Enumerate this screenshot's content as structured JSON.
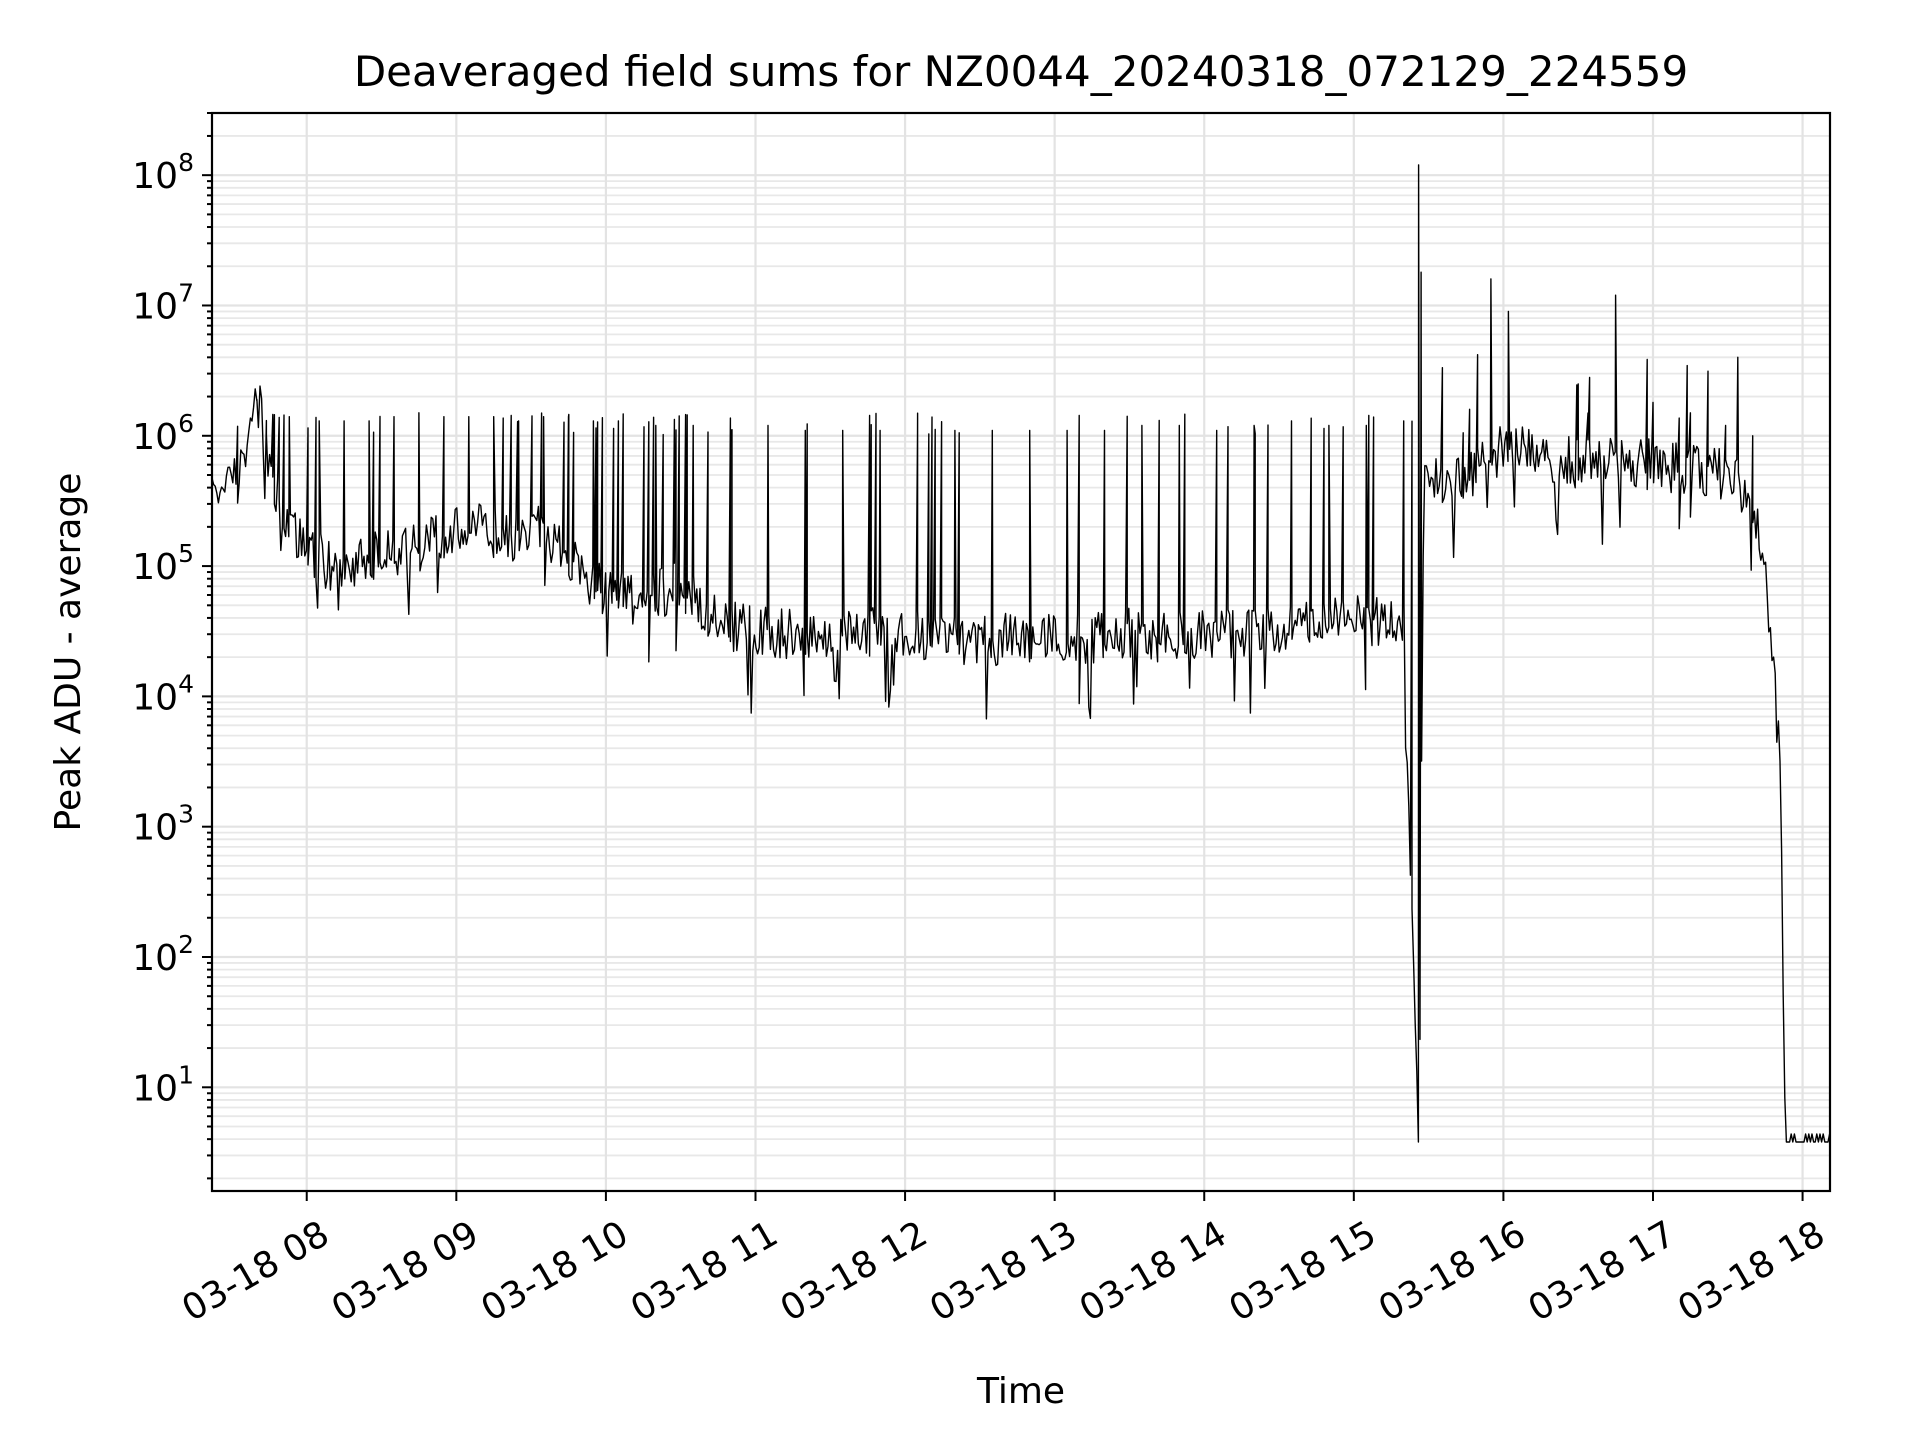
{
  "chart_data": {
    "type": "line",
    "title": "Deaveraged field sums for NZ0044_20240318_072129_224559",
    "xlabel": "Time",
    "ylabel": "Peak ADU - average",
    "yscale": "log",
    "xlim": [
      "2024-03-18 07:22",
      "2024-03-18 18:11"
    ],
    "ylim": [
      1.6,
      300000000
    ],
    "x_ticks": [
      {
        "time": "2024-03-18 08:00",
        "label": "03-18 08"
      },
      {
        "time": "2024-03-18 09:00",
        "label": "03-18 09"
      },
      {
        "time": "2024-03-18 10:00",
        "label": "03-18 10"
      },
      {
        "time": "2024-03-18 11:00",
        "label": "03-18 11"
      },
      {
        "time": "2024-03-18 12:00",
        "label": "03-18 12"
      },
      {
        "time": "2024-03-18 13:00",
        "label": "03-18 13"
      },
      {
        "time": "2024-03-18 14:00",
        "label": "03-18 14"
      },
      {
        "time": "2024-03-18 15:00",
        "label": "03-18 15"
      },
      {
        "time": "2024-03-18 16:00",
        "label": "03-18 16"
      },
      {
        "time": "2024-03-18 17:00",
        "label": "03-18 17"
      },
      {
        "time": "2024-03-18 18:00",
        "label": "03-18 18"
      }
    ],
    "y_ticks": [
      {
        "value": 10,
        "base": "10",
        "exp": "1"
      },
      {
        "value": 100,
        "base": "10",
        "exp": "2"
      },
      {
        "value": 1000,
        "base": "10",
        "exp": "3"
      },
      {
        "value": 10000,
        "base": "10",
        "exp": "4"
      },
      {
        "value": 100000,
        "base": "10",
        "exp": "5"
      },
      {
        "value": 1000000,
        "base": "10",
        "exp": "6"
      },
      {
        "value": 10000000,
        "base": "10",
        "exp": "7"
      },
      {
        "value": 100000000,
        "base": "10",
        "exp": "8"
      }
    ],
    "grid": true,
    "line_color": "#000000",
    "series": [
      {
        "name": "",
        "points": [
          [
            "2024-03-18 07:22",
            300000
          ],
          [
            "2024-03-18 07:27",
            550000
          ],
          [
            "2024-03-18 07:32",
            420000
          ],
          [
            "2024-03-18 07:38",
            1400000
          ],
          [
            "2024-03-18 07:41",
            1900000
          ],
          [
            "2024-03-18 07:44",
            650000
          ],
          [
            "2024-03-18 07:50",
            300000
          ],
          [
            "2024-03-18 07:55",
            200000
          ],
          [
            "2024-03-18 08:00",
            130000
          ],
          [
            "2024-03-18 08:10",
            100000
          ],
          [
            "2024-03-18 08:20",
            110000
          ],
          [
            "2024-03-18 08:30",
            120000
          ],
          [
            "2024-03-18 08:40",
            130000
          ],
          [
            "2024-03-18 08:50",
            150000
          ],
          [
            "2024-03-18 09:00",
            180000
          ],
          [
            "2024-03-18 09:10",
            200000
          ],
          [
            "2024-03-18 09:20",
            160000
          ],
          [
            "2024-03-18 09:30",
            200000
          ],
          [
            "2024-03-18 09:40",
            150000
          ],
          [
            "2024-03-18 09:50",
            90000
          ],
          [
            "2024-03-18 10:00",
            60000
          ],
          [
            "2024-03-18 10:10",
            55000
          ],
          [
            "2024-03-18 10:20",
            60000
          ],
          [
            "2024-03-18 10:30",
            70000
          ],
          [
            "2024-03-18 10:40",
            45000
          ],
          [
            "2024-03-18 10:50",
            35000
          ],
          [
            "2024-03-18 11:00",
            32000
          ],
          [
            "2024-03-18 11:15",
            30000
          ],
          [
            "2024-03-18 11:30",
            32000
          ],
          [
            "2024-03-18 11:45",
            30000
          ],
          [
            "2024-03-18 12:00",
            32000
          ],
          [
            "2024-03-18 12:15",
            28000
          ],
          [
            "2024-03-18 12:30",
            26000
          ],
          [
            "2024-03-18 12:45",
            28000
          ],
          [
            "2024-03-18 13:00",
            30000
          ],
          [
            "2024-03-18 13:15",
            28000
          ],
          [
            "2024-03-18 13:30",
            30000
          ],
          [
            "2024-03-18 13:45",
            28000
          ],
          [
            "2024-03-18 14:00",
            30000
          ],
          [
            "2024-03-18 14:15",
            31000
          ],
          [
            "2024-03-18 14:30",
            33000
          ],
          [
            "2024-03-18 14:45",
            35000
          ],
          [
            "2024-03-18 15:00",
            38000
          ],
          [
            "2024-03-18 15:20",
            40000
          ],
          [
            "2024-03-18 15:26",
            3.8
          ],
          [
            "2024-03-18 15:28",
            500000
          ],
          [
            "2024-03-18 15:35",
            450000
          ],
          [
            "2024-03-18 15:45",
            500000
          ],
          [
            "2024-03-18 16:00",
            800000
          ],
          [
            "2024-03-18 16:15",
            700000
          ],
          [
            "2024-03-18 16:30",
            600000
          ],
          [
            "2024-03-18 16:45",
            650000
          ],
          [
            "2024-03-18 17:00",
            600000
          ],
          [
            "2024-03-18 17:15",
            550000
          ],
          [
            "2024-03-18 17:30",
            500000
          ],
          [
            "2024-03-18 17:40",
            300000
          ],
          [
            "2024-03-18 17:45",
            100000
          ],
          [
            "2024-03-18 17:48",
            20000
          ],
          [
            "2024-03-18 17:51",
            3000
          ],
          [
            "2024-03-18 17:53",
            3.8
          ],
          [
            "2024-03-18 18:11",
            3.8
          ]
        ],
        "spikes": [
          [
            "2024-03-18 07:40",
            1900000
          ],
          [
            "2024-03-18 07:53",
            1400000
          ],
          [
            "2024-03-18 08:05",
            1300000
          ],
          [
            "2024-03-18 08:15",
            1300000
          ],
          [
            "2024-03-18 08:25",
            1300000
          ],
          [
            "2024-03-18 08:35",
            1400000
          ],
          [
            "2024-03-18 08:45",
            1500000
          ],
          [
            "2024-03-18 08:55",
            1400000
          ],
          [
            "2024-03-18 09:05",
            1400000
          ],
          [
            "2024-03-18 09:15",
            1400000
          ],
          [
            "2024-03-18 09:25",
            1300000
          ],
          [
            "2024-03-18 09:35",
            1400000
          ],
          [
            "2024-03-18 09:45",
            1400000
          ],
          [
            "2024-03-18 09:55",
            1300000
          ],
          [
            "2024-03-18 10:05",
            1300000
          ],
          [
            "2024-03-18 10:20",
            1200000
          ],
          [
            "2024-03-18 10:35",
            1200000
          ],
          [
            "2024-03-18 10:50",
            1100000
          ],
          [
            "2024-03-18 11:05",
            1200000
          ],
          [
            "2024-03-18 11:20",
            1100000
          ],
          [
            "2024-03-18 11:35",
            1100000
          ],
          [
            "2024-03-18 11:50",
            1100000
          ],
          [
            "2024-03-18 12:05",
            1000000
          ],
          [
            "2024-03-18 12:20",
            1100000
          ],
          [
            "2024-03-18 12:35",
            1100000
          ],
          [
            "2024-03-18 12:50",
            1100000
          ],
          [
            "2024-03-18 13:05",
            1100000
          ],
          [
            "2024-03-18 13:20",
            1100000
          ],
          [
            "2024-03-18 13:35",
            1200000
          ],
          [
            "2024-03-18 13:50",
            1200000
          ],
          [
            "2024-03-18 14:05",
            1100000
          ],
          [
            "2024-03-18 14:20",
            1200000
          ],
          [
            "2024-03-18 14:35",
            1300000
          ],
          [
            "2024-03-18 14:50",
            1200000
          ],
          [
            "2024-03-18 15:05",
            1200000
          ],
          [
            "2024-03-18 15:20",
            1300000
          ],
          [
            "2024-03-18 15:26",
            120000000
          ],
          [
            "2024-03-18 15:27",
            18000000
          ],
          [
            "2024-03-18 15:55",
            16000000
          ],
          [
            "2024-03-18 16:02",
            9000000
          ],
          [
            "2024-03-18 16:30",
            2500000
          ],
          [
            "2024-03-18 16:45",
            12000000
          ],
          [
            "2024-03-18 17:00",
            1800000
          ],
          [
            "2024-03-18 17:15",
            1500000
          ],
          [
            "2024-03-18 17:34",
            4000000
          ],
          [
            "2024-03-18 17:40",
            1000000
          ]
        ]
      }
    ]
  }
}
